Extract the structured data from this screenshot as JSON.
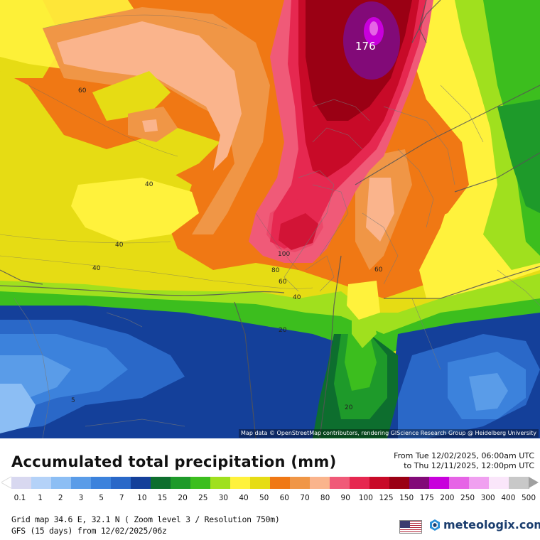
{
  "map": {
    "attribution": "Map data © OpenStreetMap contributors, rendering GIScience Research Group @ Heidelberg University",
    "max_value_label": "176",
    "contour_labels": [
      "60",
      "40",
      "40",
      "40",
      "100",
      "80",
      "60",
      "40",
      "20",
      "60",
      "5",
      "20"
    ]
  },
  "legend": {
    "title": "Accumulated total precipitation (mm)",
    "from": "From Tue 12/02/2025, 06:00am UTC",
    "to": "to Thu 12/11/2025, 12:00pm UTC",
    "levels": [
      "0.1",
      "1",
      "2",
      "3",
      "5",
      "7",
      "10",
      "15",
      "20",
      "25",
      "30",
      "40",
      "50",
      "60",
      "70",
      "80",
      "90",
      "100",
      "125",
      "150",
      "175",
      "200",
      "250",
      "300",
      "400",
      "500"
    ],
    "colors": [
      "#d8d8f0",
      "#b4d2f8",
      "#8cbef4",
      "#5a9ce8",
      "#3c82dc",
      "#2a68c8",
      "#14409a",
      "#0d6e2e",
      "#1e9a2a",
      "#3cbe1e",
      "#a0e01e",
      "#fff23c",
      "#e6dc14",
      "#f07814",
      "#f09646",
      "#fab48c",
      "#f05a78",
      "#e62850",
      "#c80a28",
      "#9a0014",
      "#820a78",
      "#c800dc",
      "#e664e6",
      "#f0a0f0",
      "#fae6fa",
      "#c8c8c8"
    ],
    "arrow_left_color": "#ffffff",
    "arrow_right_color": "#a0a0a0"
  },
  "footer": {
    "grid": "Grid map 34.6 E, 32.1 N ( Zoom level 3 / Resolution 750m)",
    "model": "GFS (15 days) from  12/02/2025/06z",
    "brand": "meteologix.com",
    "flag_icon": "us-flag-icon",
    "brand_icon": "meteologix-logo-icon"
  }
}
